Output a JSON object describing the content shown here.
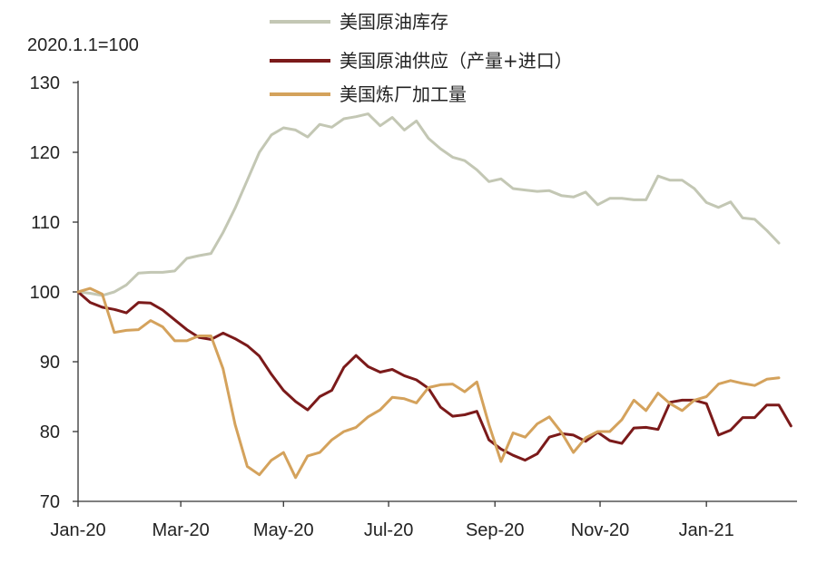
{
  "chart_data": {
    "type": "line",
    "unit_label": "2020.1.1=100",
    "ylim": [
      70,
      130
    ],
    "y_ticks": [
      70,
      80,
      90,
      100,
      110,
      120,
      130
    ],
    "x_ticks": [
      {
        "label": "Jan-20",
        "week": 0
      },
      {
        "label": "Mar-20",
        "week": 8.5
      },
      {
        "label": "May-20",
        "week": 17
      },
      {
        "label": "Jul-20",
        "week": 25.7
      },
      {
        "label": "Sep-20",
        "week": 34.5
      },
      {
        "label": "Nov-20",
        "week": 43.2
      },
      {
        "label": "Jan-21",
        "week": 52
      }
    ],
    "grid": false,
    "legend_position": "top",
    "series": [
      {
        "name": "美国原油库存",
        "color": "#c3c7b4",
        "values": [
          100,
          99.8,
          99.5,
          100,
          101,
          102.7,
          102.8,
          102.8,
          103,
          104.8,
          105.2,
          105.5,
          108.5,
          112,
          116,
          120,
          122.5,
          123.5,
          123.2,
          122.2,
          124,
          123.6,
          124.8,
          125.1,
          125.5,
          123.8,
          125,
          123.2,
          124.5,
          122,
          120.5,
          119.3,
          118.8,
          117.5,
          115.8,
          116.2,
          114.8,
          114.6,
          114.4,
          114.5,
          113.8,
          113.6,
          114.3,
          112.5,
          113.4,
          113.4,
          113.2,
          113.2,
          116.6,
          116,
          116,
          114.8,
          112.8,
          112.1,
          112.9,
          110.6,
          110.4,
          108.8,
          107
        ]
      },
      {
        "name": "美国原油供应（产量+进口）",
        "color": "#7b1a1a",
        "values": [
          100,
          98.5,
          97.8,
          97.5,
          97,
          98.5,
          98.4,
          97.4,
          96,
          94.6,
          93.5,
          93.2,
          94.1,
          93.3,
          92.3,
          90.8,
          88.2,
          85.9,
          84.3,
          83.1,
          85,
          85.9,
          89.2,
          90.9,
          89.3,
          88.5,
          88.9,
          88,
          87.4,
          86.2,
          83.5,
          82.2,
          82.4,
          82.9,
          78.8,
          77.5,
          76.6,
          75.9,
          76.8,
          79.2,
          79.7,
          79.5,
          78.6,
          79.9,
          78.7,
          78.3,
          80.5,
          80.6,
          80.3,
          84.2,
          84.5,
          84.5,
          84,
          79.5,
          80.2,
          82,
          82,
          83.8,
          83.8,
          80.8
        ]
      },
      {
        "name": "美国炼厂加工量",
        "color": "#d4a25c",
        "values": [
          100,
          100.5,
          99.7,
          94.2,
          94.5,
          94.6,
          95.9,
          95,
          93,
          93,
          93.7,
          93.7,
          89,
          81,
          75,
          73.8,
          75.9,
          77,
          73.4,
          76.5,
          77,
          78.8,
          80,
          80.6,
          82.1,
          83.1,
          84.9,
          84.7,
          84.1,
          86.3,
          86.7,
          86.8,
          85.7,
          87.1,
          81,
          75.7,
          79.8,
          79.2,
          81.1,
          82.1,
          79.9,
          77,
          79.1,
          80,
          80,
          81.7,
          84.5,
          83,
          85.5,
          84,
          83,
          84.5,
          85,
          86.8,
          87.3,
          86.9,
          86.6,
          87.5,
          87.7
        ]
      }
    ]
  }
}
